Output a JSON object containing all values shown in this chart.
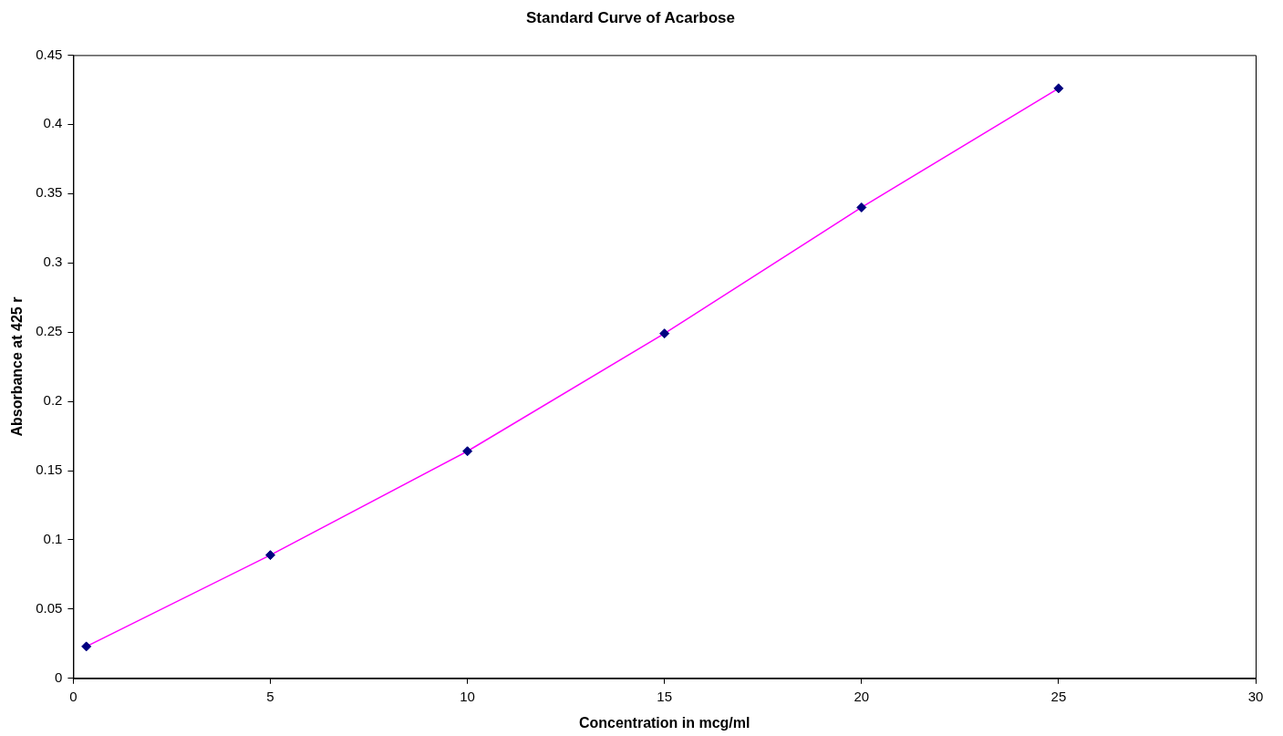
{
  "chart_data": {
    "type": "line",
    "title": "Standard Curve of Acarbose",
    "xlabel": "Concentration in mcg/ml",
    "ylabel": "Absorbance at 425 r",
    "x": [
      0.33,
      5,
      10,
      15,
      20,
      25
    ],
    "series": [
      {
        "color": "#ff00ff",
        "colors": [
          "#000080",
          "#000080",
          "#000080",
          "#000080",
          "#000080",
          "#000080"
        ],
        "values": [
          0.023,
          0.089,
          0.164,
          0.249,
          0.34,
          0.426
        ]
      }
    ],
    "xlim": [
      0,
      30
    ],
    "xticks": [
      0,
      5,
      10,
      15,
      20,
      25,
      30
    ],
    "ylim": [
      0,
      0.45
    ],
    "yticks": [
      0,
      0.05,
      0.1,
      0.15,
      0.2,
      0.25,
      0.3,
      0.35,
      0.4,
      0.45
    ],
    "grid": false,
    "legend": false,
    "marker": "diamond",
    "line_style": "solid"
  }
}
